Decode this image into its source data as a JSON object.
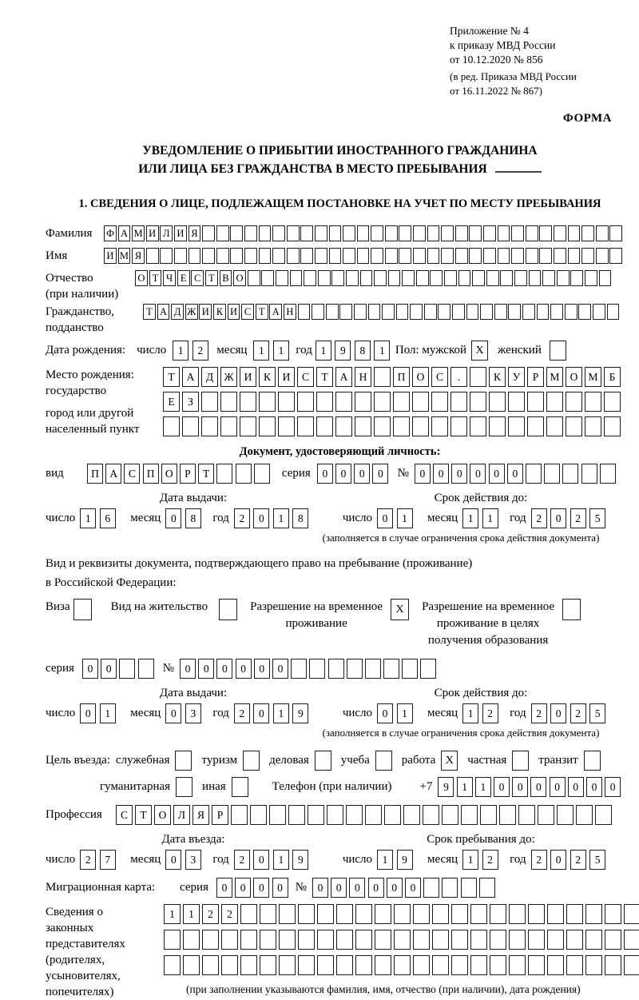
{
  "header": {
    "lines": [
      "Приложение № 4",
      "к приказу МВД России",
      "от 10.12.2020 № 856"
    ],
    "sub_lines": [
      "(в ред. Приказа МВД России",
      "от 16.11.2022 № 867)"
    ],
    "form_label": "ФОРМА"
  },
  "title": {
    "line1": "УВЕДОМЛЕНИЕ О ПРИБЫТИИ ИНОСТРАННОГО ГРАЖДАНИНА",
    "line2": "ИЛИ ЛИЦА БЕЗ ГРАЖДАНСТВА В МЕСТО ПРЕБЫВАНИЯ"
  },
  "section1_heading": "1. СВЕДЕНИЯ О ЛИЦЕ, ПОДЛЕЖАЩЕМ ПОСТАНОВКЕ НА УЧЕТ ПО МЕСТУ ПРЕБЫВАНИЯ",
  "labels": {
    "day": "число",
    "month": "месяц",
    "year": "год"
  },
  "surname": {
    "label": "Фамилия",
    "cells": {
      "value": "ФАМИЛИЯ",
      "count": 37
    }
  },
  "firstname": {
    "label": "Имя",
    "cells": {
      "value": "ИМЯ",
      "count": 37
    }
  },
  "patronymic": {
    "label_line1": "Отчество",
    "label_line2": "(при наличии)",
    "cells": {
      "value": "ОТЧЕСТВО",
      "count": 34
    }
  },
  "citizenship": {
    "label_line1": "Гражданство,",
    "label_line2": "подданство",
    "cells": {
      "value": "ТАДЖИКИСТАН",
      "count": 34
    }
  },
  "birth": {
    "label": "Дата рождения:",
    "day": {
      "value": "12",
      "count": 2
    },
    "month": {
      "value": "11",
      "count": 2
    },
    "year": {
      "value": "1981",
      "count": 4
    },
    "sex_label": "Пол: мужской",
    "male_value": "X",
    "female_label": "женский",
    "female_value": ""
  },
  "birthplace": {
    "label_lines": [
      "Место рождения:",
      "государство",
      "город или другой",
      "населенный пункт"
    ],
    "rows": [
      {
        "value": "ТАДЖИКИСТАН ПОС. КУРМОМБ",
        "count": 24
      },
      {
        "value": "ЕЗ",
        "count": 24
      },
      {
        "value": "",
        "count": 24
      }
    ]
  },
  "identity_doc": {
    "heading": "Документ, удостоверяющий личность:",
    "vid_label": "вид",
    "vid": {
      "value": "ПАСПОРТ",
      "count": 10
    },
    "seriya_label": "серия",
    "seriya": {
      "value": "0000",
      "count": 4
    },
    "num_label": "№",
    "number": {
      "value": "000000",
      "count": 11
    },
    "issue_heading": "Дата выдачи:",
    "issue": {
      "day": {
        "value": "16",
        "count": 2
      },
      "month": {
        "value": "08",
        "count": 2
      },
      "year": {
        "value": "2018",
        "count": 4
      }
    },
    "valid_heading": "Срок действия до:",
    "valid": {
      "day": {
        "value": "01",
        "count": 2
      },
      "month": {
        "value": "11",
        "count": 2
      },
      "year": {
        "value": "2025",
        "count": 4
      }
    },
    "note": "(заполняется в случае ограничения срока действия документа)"
  },
  "residence_doc": {
    "intro1": "Вид и реквизиты документа, подтверждающего право на пребывание (проживание)",
    "intro2": "в Российской Федерации:",
    "visa_label": "Виза",
    "visa_value": "",
    "vnj_label": "Вид на жительство",
    "vnj_value": "",
    "rvp_line1": "Разрешение на временное",
    "rvp_line2": "проживание",
    "rvp_value": "X",
    "rvpo_line1": "Разрешение на временное",
    "rvpo_line2": "проживание в целях",
    "rvpo_line3": "получения образования",
    "rvpo_value": "",
    "seriya_label": "серия",
    "seriya": {
      "value": "00",
      "count": 4
    },
    "num_label": "№",
    "number": {
      "value": "000000",
      "count": 14
    },
    "issue_heading": "Дата выдачи:",
    "issue": {
      "day": {
        "value": "01",
        "count": 2
      },
      "month": {
        "value": "03",
        "count": 2
      },
      "year": {
        "value": "2019",
        "count": 4
      }
    },
    "valid_heading": "Срок действия до:",
    "valid": {
      "day": {
        "value": "01",
        "count": 2
      },
      "month": {
        "value": "12",
        "count": 2
      },
      "year": {
        "value": "2025",
        "count": 4
      }
    },
    "note": "(заполняется в случае ограничения срока действия документа)"
  },
  "purpose": {
    "label": "Цель въезда:",
    "items": [
      {
        "label": "служебная",
        "value": ""
      },
      {
        "label": "туризм",
        "value": ""
      },
      {
        "label": "деловая",
        "value": ""
      },
      {
        "label": "учеба",
        "value": ""
      },
      {
        "label": "работа",
        "value": "X"
      },
      {
        "label": "частная",
        "value": ""
      },
      {
        "label": "транзит",
        "value": ""
      }
    ],
    "items2": [
      {
        "label": "гуманитарная",
        "value": ""
      },
      {
        "label": "иная",
        "value": ""
      }
    ]
  },
  "phone": {
    "label": "Телефон (при наличии)",
    "prefix": "+7",
    "cells": {
      "value": "9110000000",
      "count": 10
    }
  },
  "profession": {
    "label": "Профессия",
    "cells": {
      "value": "СТОЛЯР",
      "count": 26
    }
  },
  "entry": {
    "heading": "Дата въезда:",
    "date": {
      "day": {
        "value": "27",
        "count": 2
      },
      "month": {
        "value": "03",
        "count": 2
      },
      "year": {
        "value": "2019",
        "count": 4
      }
    }
  },
  "stay": {
    "heading": "Срок пребывания до:",
    "date": {
      "day": {
        "value": "19",
        "count": 2
      },
      "month": {
        "value": "12",
        "count": 2
      },
      "year": {
        "value": "2025",
        "count": 4
      }
    }
  },
  "migration_card": {
    "label": "Миграционная карта:",
    "seriya_label": "серия",
    "seriya": {
      "value": "0000",
      "count": 4
    },
    "num_label": "№",
    "number": {
      "value": "000000",
      "count": 10
    }
  },
  "representatives": {
    "label_lines": [
      "Сведения о",
      "законных",
      "представителях",
      "(родителях,",
      "усыновителях,",
      "попечителях)"
    ],
    "rows": [
      {
        "value": "1122",
        "count": 26
      },
      {
        "value": "",
        "count": 26
      },
      {
        "value": "",
        "count": 26
      }
    ],
    "footnote": "(при заполнении указываются фамилия, имя, отчество (при наличии), дата рождения)"
  }
}
